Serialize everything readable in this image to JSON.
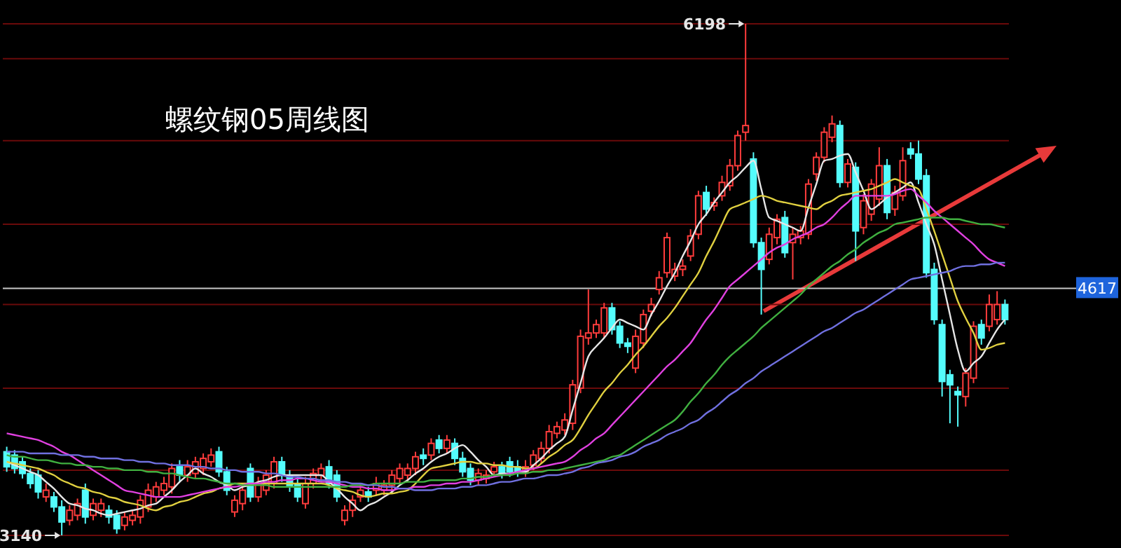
{
  "chart_data": {
    "type": "candlestick",
    "title": "螺纹钢05周线图",
    "categories": [
      null,
      null,
      null,
      null,
      null,
      null,
      null,
      null,
      null,
      null,
      null,
      null,
      null,
      null,
      null,
      null,
      null,
      null,
      null,
      null,
      null,
      null,
      null,
      null,
      null,
      null,
      null,
      null,
      null,
      null,
      null,
      null,
      null,
      null,
      null,
      null,
      null,
      null,
      null,
      null,
      null,
      null,
      null,
      null,
      null,
      null,
      null,
      null,
      null,
      null,
      null,
      null,
      null,
      null,
      null,
      null,
      null,
      null,
      null,
      null,
      null,
      null,
      null,
      null,
      null,
      null,
      null,
      null,
      null,
      null,
      null,
      null,
      null,
      null,
      null,
      null,
      null,
      null,
      null,
      null,
      null,
      null,
      null,
      null,
      null,
      null,
      null,
      null,
      null,
      null,
      null,
      null,
      null,
      null,
      null,
      null,
      null,
      null,
      null,
      null,
      null,
      null,
      null,
      null,
      null,
      null,
      null,
      null,
      null,
      null,
      null,
      null,
      null,
      null,
      null,
      null,
      null,
      null,
      null,
      null,
      null,
      null,
      null,
      null,
      null,
      null,
      null,
      null
    ],
    "ohlc": [
      [
        3640,
        3670,
        3520,
        3550
      ],
      [
        3620,
        3650,
        3510,
        3540
      ],
      [
        3580,
        3610,
        3480,
        3510
      ],
      [
        3510,
        3540,
        3420,
        3450
      ],
      [
        3500,
        3530,
        3360,
        3400
      ],
      [
        3370,
        3450,
        3340,
        3410
      ],
      [
        3370,
        3400,
        3280,
        3310
      ],
      [
        3310,
        3350,
        3140,
        3220
      ],
      [
        3230,
        3320,
        3200,
        3290
      ],
      [
        3260,
        3360,
        3230,
        3330
      ],
      [
        3410,
        3450,
        3210,
        3250
      ],
      [
        3260,
        3360,
        3230,
        3330
      ],
      [
        3290,
        3360,
        3250,
        3330
      ],
      [
        3290,
        3320,
        3210,
        3250
      ],
      [
        3260,
        3290,
        3150,
        3180
      ],
      [
        3200,
        3280,
        3170,
        3250
      ],
      [
        3230,
        3290,
        3200,
        3260
      ],
      [
        3250,
        3380,
        3210,
        3350
      ],
      [
        3310,
        3450,
        3280,
        3410
      ],
      [
        3370,
        3460,
        3340,
        3430
      ],
      [
        3410,
        3490,
        3380,
        3450
      ],
      [
        3430,
        3570,
        3390,
        3540
      ],
      [
        3550,
        3590,
        3460,
        3500
      ],
      [
        3500,
        3590,
        3460,
        3550
      ],
      [
        3510,
        3610,
        3480,
        3580
      ],
      [
        3540,
        3630,
        3500,
        3600
      ],
      [
        3580,
        3660,
        3550,
        3620
      ],
      [
        3640,
        3670,
        3490,
        3520
      ],
      [
        3520,
        3550,
        3380,
        3410
      ],
      [
        3280,
        3380,
        3250,
        3350
      ],
      [
        3330,
        3450,
        3290,
        3410
      ],
      [
        3540,
        3570,
        3340,
        3370
      ],
      [
        3370,
        3490,
        3340,
        3450
      ],
      [
        3410,
        3530,
        3380,
        3500
      ],
      [
        3450,
        3610,
        3420,
        3580
      ],
      [
        3580,
        3610,
        3460,
        3500
      ],
      [
        3500,
        3530,
        3400,
        3430
      ],
      [
        3450,
        3490,
        3340,
        3370
      ],
      [
        3330,
        3490,
        3300,
        3450
      ],
      [
        3450,
        3540,
        3420,
        3510
      ],
      [
        3500,
        3570,
        3460,
        3540
      ],
      [
        3550,
        3590,
        3420,
        3450
      ],
      [
        3500,
        3530,
        3340,
        3370
      ],
      [
        3230,
        3320,
        3200,
        3290
      ],
      [
        3290,
        3380,
        3250,
        3350
      ],
      [
        3370,
        3450,
        3340,
        3410
      ],
      [
        3400,
        3430,
        3340,
        3370
      ],
      [
        3410,
        3490,
        3380,
        3450
      ],
      [
        3410,
        3470,
        3380,
        3440
      ],
      [
        3440,
        3530,
        3400,
        3500
      ],
      [
        3480,
        3570,
        3450,
        3540
      ],
      [
        3500,
        3570,
        3460,
        3540
      ],
      [
        3540,
        3640,
        3500,
        3610
      ],
      [
        3620,
        3660,
        3560,
        3600
      ],
      [
        3620,
        3720,
        3590,
        3690
      ],
      [
        3710,
        3740,
        3630,
        3660
      ],
      [
        3660,
        3740,
        3630,
        3710
      ],
      [
        3690,
        3720,
        3560,
        3600
      ],
      [
        3600,
        3640,
        3490,
        3520
      ],
      [
        3540,
        3570,
        3440,
        3470
      ],
      [
        3470,
        3540,
        3440,
        3510
      ],
      [
        3480,
        3530,
        3450,
        3500
      ],
      [
        3520,
        3580,
        3490,
        3550
      ],
      [
        3550,
        3580,
        3480,
        3510
      ],
      [
        3580,
        3610,
        3490,
        3520
      ],
      [
        3550,
        3590,
        3490,
        3520
      ],
      [
        3520,
        3590,
        3490,
        3550
      ],
      [
        3560,
        3650,
        3530,
        3620
      ],
      [
        3600,
        3700,
        3570,
        3660
      ],
      [
        3660,
        3800,
        3630,
        3760
      ],
      [
        3750,
        3820,
        3720,
        3790
      ],
      [
        3770,
        3870,
        3740,
        3830
      ],
      [
        3810,
        4070,
        3770,
        4040
      ],
      [
        4020,
        4370,
        3990,
        4330
      ],
      [
        4320,
        4610,
        4280,
        4350
      ],
      [
        4350,
        4430,
        4320,
        4400
      ],
      [
        4350,
        4530,
        4320,
        4500
      ],
      [
        4500,
        4530,
        4340,
        4370
      ],
      [
        4390,
        4420,
        4260,
        4290
      ],
      [
        4290,
        4320,
        4230,
        4270
      ],
      [
        4140,
        4370,
        4110,
        4330
      ],
      [
        4290,
        4490,
        4260,
        4460
      ],
      [
        4480,
        4560,
        4450,
        4520
      ],
      [
        4610,
        4720,
        4580,
        4680
      ],
      [
        4710,
        4950,
        4680,
        4920
      ],
      [
        4690,
        4770,
        4660,
        4730
      ],
      [
        4730,
        4790,
        4690,
        4750
      ],
      [
        4810,
        4970,
        4780,
        4930
      ],
      [
        4940,
        5200,
        4910,
        5170
      ],
      [
        5190,
        5230,
        5050,
        5090
      ],
      [
        5110,
        5160,
        5080,
        5130
      ],
      [
        5170,
        5290,
        5140,
        5250
      ],
      [
        5230,
        5390,
        5200,
        5350
      ],
      [
        5350,
        5560,
        5320,
        5530
      ],
      [
        5550,
        6198,
        5500,
        5590
      ],
      [
        5390,
        5430,
        4860,
        4890
      ],
      [
        4890,
        4920,
        4460,
        4730
      ],
      [
        4790,
        4980,
        4760,
        4940
      ],
      [
        4920,
        5060,
        4880,
        5030
      ],
      [
        5040,
        5080,
        4800,
        4830
      ],
      [
        4890,
        4980,
        4670,
        4940
      ],
      [
        4920,
        4990,
        4880,
        4960
      ],
      [
        4940,
        5270,
        4910,
        5240
      ],
      [
        5300,
        5430,
        5260,
        5400
      ],
      [
        5400,
        5580,
        5370,
        5550
      ],
      [
        5520,
        5650,
        5490,
        5600
      ],
      [
        5590,
        5620,
        5220,
        5250
      ],
      [
        5250,
        5390,
        5220,
        5360
      ],
      [
        5340,
        5370,
        4780,
        4960
      ],
      [
        4980,
        5180,
        4940,
        5140
      ],
      [
        5060,
        5270,
        5020,
        5240
      ],
      [
        5150,
        5460,
        5110,
        5350
      ],
      [
        5350,
        5390,
        5030,
        5070
      ],
      [
        5090,
        5230,
        5050,
        5190
      ],
      [
        5170,
        5460,
        5140,
        5380
      ],
      [
        5450,
        5490,
        5390,
        5420
      ],
      [
        5420,
        5500,
        5240,
        5270
      ],
      [
        5290,
        5330,
        4680,
        4710
      ],
      [
        4730,
        4770,
        4400,
        4430
      ],
      [
        4400,
        4430,
        3970,
        4060
      ],
      [
        4100,
        4130,
        3810,
        4040
      ],
      [
        4000,
        4030,
        3790,
        3980
      ],
      [
        3970,
        4140,
        3910,
        4110
      ],
      [
        4080,
        4420,
        4050,
        4390
      ],
      [
        4400,
        4430,
        4280,
        4320
      ],
      [
        4390,
        4580,
        4360,
        4520
      ],
      [
        4430,
        4600,
        4400,
        4520
      ],
      [
        4520,
        4550,
        4400,
        4430
      ]
    ],
    "colors": [
      "#54fcfc",
      "#54fcfc",
      "#54fcfc",
      "#54fcfc",
      "#54fcfc",
      "#ff3c3c",
      "#54fcfc",
      "#54fcfc",
      "#ff3c3c",
      "#ff3c3c",
      "#54fcfc",
      "#ff3c3c",
      "#ff3c3c",
      "#54fcfc",
      "#54fcfc",
      "#ff3c3c",
      "#ff3c3c",
      "#ff3c3c",
      "#ff3c3c",
      "#ff3c3c",
      "#ff3c3c",
      "#ff3c3c",
      "#54fcfc",
      "#ff3c3c",
      "#ff3c3c",
      "#ff3c3c",
      "#ff3c3c",
      "#54fcfc",
      "#54fcfc",
      "#ff3c3c",
      "#ff3c3c",
      "#54fcfc",
      "#ff3c3c",
      "#ff3c3c",
      "#ff3c3c",
      "#54fcfc",
      "#54fcfc",
      "#54fcfc",
      "#ff3c3c",
      "#ff3c3c",
      "#ff3c3c",
      "#54fcfc",
      "#54fcfc",
      "#ff3c3c",
      "#ff3c3c",
      "#ff3c3c",
      "#54fcfc",
      "#ff3c3c",
      "#ff3c3c",
      "#ff3c3c",
      "#ff3c3c",
      "#ff3c3c",
      "#ff3c3c",
      "#54fcfc",
      "#ff3c3c",
      "#54fcfc",
      "#ff3c3c",
      "#54fcfc",
      "#54fcfc",
      "#54fcfc",
      "#ff3c3c",
      "#ff3c3c",
      "#ff3c3c",
      "#54fcfc",
      "#54fcfc",
      "#54fcfc",
      "#ff3c3c",
      "#ff3c3c",
      "#ff3c3c",
      "#ff3c3c",
      "#ff3c3c",
      "#ff3c3c",
      "#ff3c3c",
      "#ff3c3c",
      "#ff3c3c",
      "#ff3c3c",
      "#ff3c3c",
      "#54fcfc",
      "#54fcfc",
      "#54fcfc",
      "#ff3c3c",
      "#ff3c3c",
      "#ff3c3c",
      "#ff3c3c",
      "#ff3c3c",
      "#ff3c3c",
      "#ff3c3c",
      "#ff3c3c",
      "#ff3c3c",
      "#54fcfc",
      "#ff3c3c",
      "#ff3c3c",
      "#ff3c3c",
      "#ff3c3c",
      "#ff3c3c",
      "#54fcfc",
      "#54fcfc",
      "#ff3c3c",
      "#ff3c3c",
      "#54fcfc",
      "#ff3c3c",
      "#ff3c3c",
      "#ff3c3c",
      "#ff3c3c",
      "#ff3c3c",
      "#ff3c3c",
      "#54fcfc",
      "#ff3c3c",
      "#54fcfc",
      "#ff3c3c",
      "#ff3c3c",
      "#ff3c3c",
      "#54fcfc",
      "#ff3c3c",
      "#ff3c3c",
      "#54fcfc",
      "#54fcfc",
      "#54fcfc",
      "#54fcfc",
      "#54fcfc",
      "#54fcfc",
      "#54fcfc",
      "#ff3c3c",
      "#ff3c3c",
      "#54fcfc",
      "#ff3c3c",
      "#ff3c3c",
      "#54fcfc"
    ],
    "series": [
      {
        "type": "line",
        "color": "#e6e6e6",
        "values": [
          3580,
          3560,
          3540,
          3520,
          3500,
          3460,
          3420,
          3370,
          3330,
          3320,
          3300,
          3290,
          3270,
          3260,
          3270,
          3280,
          3290,
          3300,
          3320,
          3330,
          3370,
          3410,
          3460,
          3500,
          3540,
          3510,
          3490,
          3460,
          3440,
          3410,
          3430,
          3440,
          3460,
          3470,
          3490,
          3500,
          3500,
          3500,
          3500,
          3500,
          3500,
          3460,
          3420,
          3370,
          3330,
          3290,
          3320,
          3340,
          3370,
          3400,
          3440,
          3470,
          3510,
          3540,
          3580,
          3610,
          3630,
          3660,
          3680,
          3640,
          3590,
          3550,
          3500,
          3510,
          3510,
          3520,
          3520,
          3560,
          3600,
          3650,
          3690,
          3730,
          3890,
          4050,
          4210,
          4270,
          4320,
          4380,
          4430,
          4410,
          4390,
          4370,
          4460,
          4540,
          4630,
          4710,
          4810,
          4900,
          5000,
          5060,
          5130,
          5190,
          5250,
          5290,
          5340,
          5380,
          5210,
          5040,
          5020,
          5000,
          4980,
          4960,
          5100,
          5240,
          5380,
          5390,
          5410,
          5420,
          5310,
          5200,
          5090,
          5120,
          5160,
          5190,
          5220,
          5250,
          5130,
          5000,
          4880,
          4670,
          4460,
          4250,
          4120,
          4170,
          4210,
          4290,
          4370,
          4430
        ]
      },
      {
        "type": "line",
        "color": "#e0d040",
        "values": [
          3580,
          3570,
          3560,
          3550,
          3540,
          3520,
          3500,
          3470,
          3450,
          3430,
          3420,
          3400,
          3390,
          3370,
          3360,
          3340,
          3330,
          3320,
          3300,
          3290,
          3310,
          3320,
          3340,
          3350,
          3370,
          3390,
          3400,
          3420,
          3430,
          3450,
          3450,
          3450,
          3450,
          3450,
          3450,
          3450,
          3450,
          3450,
          3450,
          3450,
          3450,
          3440,
          3420,
          3410,
          3400,
          3380,
          3370,
          3380,
          3390,
          3390,
          3400,
          3410,
          3450,
          3500,
          3540,
          3550,
          3560,
          3570,
          3580,
          3580,
          3570,
          3570,
          3560,
          3560,
          3550,
          3550,
          3540,
          3540,
          3570,
          3610,
          3640,
          3680,
          3710,
          3780,
          3860,
          3930,
          4000,
          4050,
          4110,
          4160,
          4220,
          4270,
          4330,
          4390,
          4440,
          4500,
          4570,
          4640,
          4710,
          4810,
          4900,
          5000,
          5090,
          5110,
          5130,
          5150,
          5170,
          5160,
          5140,
          5130,
          5120,
          5110,
          5100,
          5090,
          5120,
          5140,
          5170,
          5180,
          5190,
          5200,
          5210,
          5230,
          5250,
          5270,
          5250,
          5230,
          5210,
          5090,
          4960,
          4820,
          4680,
          4540,
          4440,
          4350,
          4250,
          4260,
          4280,
          4290
        ]
      },
      {
        "type": "line",
        "color": "#e040e0",
        "values": [
          3750,
          3740,
          3730,
          3720,
          3710,
          3690,
          3670,
          3640,
          3620,
          3590,
          3560,
          3530,
          3500,
          3470,
          3440,
          3410,
          3400,
          3390,
          3380,
          3370,
          3370,
          3370,
          3370,
          3380,
          3390,
          3400,
          3410,
          3420,
          3430,
          3430,
          3440,
          3450,
          3450,
          3460,
          3460,
          3470,
          3470,
          3480,
          3480,
          3470,
          3460,
          3460,
          3450,
          3440,
          3430,
          3430,
          3420,
          3420,
          3410,
          3410,
          3420,
          3420,
          3430,
          3430,
          3440,
          3440,
          3450,
          3450,
          3460,
          3460,
          3470,
          3480,
          3490,
          3500,
          3510,
          3520,
          3530,
          3540,
          3550,
          3560,
          3570,
          3580,
          3610,
          3650,
          3680,
          3720,
          3750,
          3800,
          3850,
          3900,
          3950,
          4000,
          4050,
          4100,
          4150,
          4190,
          4240,
          4290,
          4360,
          4430,
          4490,
          4560,
          4630,
          4670,
          4710,
          4750,
          4790,
          4830,
          4860,
          4880,
          4910,
          4930,
          4950,
          4980,
          5000,
          5040,
          5090,
          5130,
          5170,
          5170,
          5170,
          5170,
          5170,
          5180,
          5200,
          5210,
          5170,
          5130,
          5080,
          5040,
          5000,
          4960,
          4920,
          4880,
          4830,
          4790,
          4770,
          4750
        ]
      },
      {
        "type": "line",
        "color": "#40b040",
        "values": [
          3620,
          3610,
          3610,
          3600,
          3590,
          3590,
          3580,
          3570,
          3570,
          3560,
          3560,
          3550,
          3550,
          3540,
          3540,
          3530,
          3530,
          3530,
          3520,
          3520,
          3510,
          3510,
          3500,
          3490,
          3480,
          3480,
          3470,
          3460,
          3450,
          3450,
          3440,
          3440,
          3440,
          3440,
          3430,
          3430,
          3430,
          3430,
          3430,
          3430,
          3430,
          3430,
          3430,
          3430,
          3440,
          3440,
          3440,
          3450,
          3450,
          3450,
          3450,
          3460,
          3460,
          3460,
          3470,
          3470,
          3470,
          3470,
          3480,
          3480,
          3490,
          3490,
          3500,
          3500,
          3500,
          3510,
          3510,
          3520,
          3520,
          3530,
          3530,
          3540,
          3550,
          3560,
          3570,
          3580,
          3590,
          3610,
          3620,
          3650,
          3680,
          3710,
          3740,
          3770,
          3800,
          3830,
          3880,
          3940,
          3990,
          4050,
          4100,
          4160,
          4210,
          4250,
          4290,
          4330,
          4380,
          4420,
          4460,
          4500,
          4540,
          4580,
          4630,
          4670,
          4710,
          4750,
          4780,
          4820,
          4850,
          4890,
          4920,
          4950,
          4970,
          5000,
          5010,
          5020,
          5030,
          5040,
          5040,
          5040,
          5030,
          5030,
          5020,
          5010,
          5000,
          5000,
          4990,
          4980
        ]
      },
      {
        "type": "line",
        "color": "#7070e0",
        "values": [
          3640,
          3640,
          3640,
          3630,
          3630,
          3630,
          3630,
          3620,
          3620,
          3620,
          3610,
          3610,
          3600,
          3600,
          3600,
          3590,
          3590,
          3580,
          3580,
          3570,
          3570,
          3560,
          3560,
          3560,
          3550,
          3550,
          3540,
          3540,
          3530,
          3530,
          3520,
          3520,
          3520,
          3510,
          3510,
          3500,
          3490,
          3490,
          3480,
          3480,
          3470,
          3470,
          3460,
          3460,
          3450,
          3450,
          3440,
          3440,
          3430,
          3430,
          3420,
          3420,
          3410,
          3410,
          3410,
          3420,
          3420,
          3420,
          3430,
          3430,
          3440,
          3440,
          3450,
          3460,
          3460,
          3470,
          3480,
          3480,
          3490,
          3500,
          3500,
          3510,
          3520,
          3540,
          3550,
          3570,
          3580,
          3590,
          3610,
          3620,
          3640,
          3670,
          3690,
          3710,
          3740,
          3760,
          3780,
          3810,
          3830,
          3870,
          3900,
          3940,
          3980,
          4010,
          4050,
          4080,
          4120,
          4150,
          4180,
          4210,
          4240,
          4270,
          4300,
          4330,
          4360,
          4380,
          4410,
          4440,
          4470,
          4490,
          4520,
          4550,
          4580,
          4610,
          4640,
          4670,
          4680,
          4690,
          4700,
          4710,
          4720,
          4740,
          4750,
          4750,
          4760,
          4760,
          4770,
          4770
        ]
      }
    ],
    "yticks": [
      {
        "value": 5990,
        "label": null
      },
      {
        "value": 5500,
        "label": null
      },
      {
        "value": 5000,
        "label": null
      },
      {
        "value": 4520,
        "label": null
      },
      {
        "value": 4020,
        "label": null
      },
      {
        "value": 3530,
        "label": null
      }
    ],
    "grid": "y",
    "ref_lines": [
      {
        "axis": "y",
        "value": 4617,
        "label": "4617",
        "color": "#c8c8c8"
      }
    ],
    "annotations": [
      "6198",
      "3140"
    ]
  }
}
